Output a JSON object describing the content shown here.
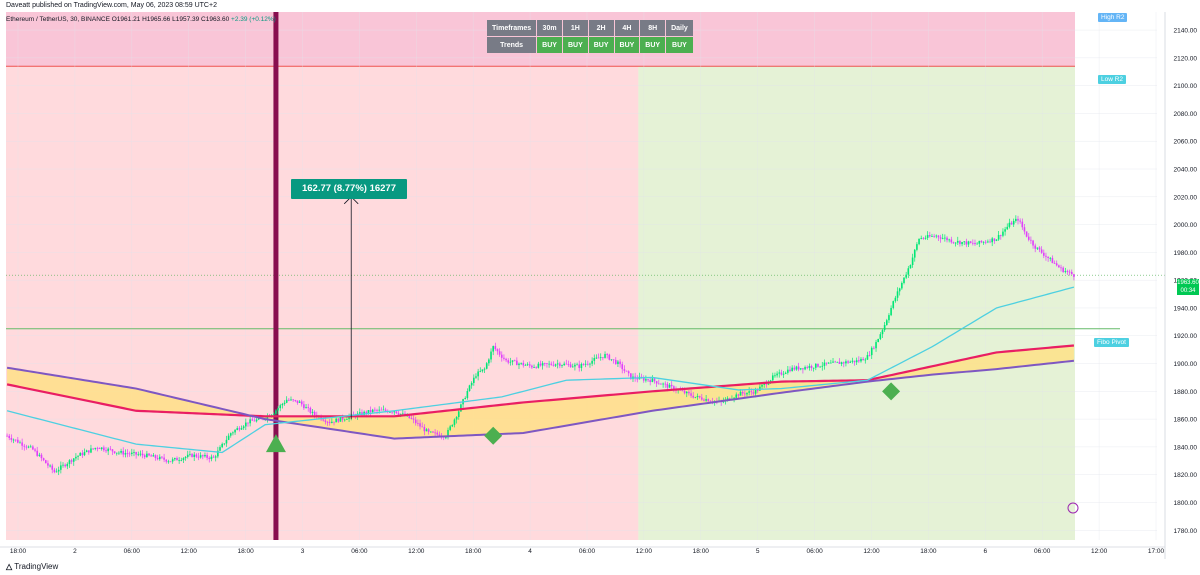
{
  "header": {
    "publisher_line": "Daveatt published on TradingView.com, May 06, 2023 08:59 UTC+2"
  },
  "legend": {
    "symbol": "Ethereum / TetherUS, 30, BINANCE",
    "ohlc": "O1961.21 H1965.66 L1957.39 C1963.60",
    "change": "+2.39 (+0.12%)"
  },
  "trend_table": {
    "header_label": "Timeframes",
    "row_label": "Trends",
    "timeframes": [
      "30m",
      "1H",
      "2H",
      "4H",
      "8H",
      "Daily"
    ],
    "trends": [
      "BUY",
      "BUY",
      "BUY",
      "BUY",
      "BUY",
      "BUY"
    ]
  },
  "measure": {
    "label": "162.77 (8.77%) 16277"
  },
  "price_labels": {
    "high_r2": "High R2",
    "low_r2": "Low R2",
    "fibo_pivot": "Fibo Pivot",
    "last_price": "1963.60",
    "countdown": "00:34"
  },
  "footer": {
    "brand": "TradingView"
  },
  "colors": {
    "bull": "#00e676",
    "bear": "#e040fb",
    "bear_zone": "#ffcdd2",
    "bull_zone": "#dcedc8",
    "r2_band": "#f8bbd0",
    "ma_red": "#e91e63",
    "ma_purple": "#7e57c2",
    "ma_cyan": "#4dd0e1",
    "fill_yellow": "#ffe082",
    "pivot_line": "#66bb6a",
    "measure": "#089981",
    "signal": "#4caf50"
  },
  "chart_data": {
    "type": "candlestick",
    "y_ticks": [
      1780,
      1800,
      1820,
      1840,
      1860,
      1880,
      1900,
      1920,
      1940,
      1960,
      1980,
      2000,
      2020,
      2040,
      2060,
      2080,
      2100,
      2120,
      2140
    ],
    "ylim": [
      1773,
      2153
    ],
    "x_ticks": [
      "18:00",
      "2",
      "06:00",
      "12:00",
      "18:00",
      "3",
      "06:00",
      "12:00",
      "18:00",
      "4",
      "06:00",
      "12:00",
      "18:00",
      "5",
      "06:00",
      "12:00",
      "18:00",
      "6",
      "06:00",
      "12:00",
      "17:00"
    ],
    "levels": {
      "high_r2": 2143,
      "low_r2": 2114,
      "fibo_pivot": 1925,
      "last_price": 1963.6
    },
    "anchors": [
      [
        0,
        1848
      ],
      [
        12,
        1838
      ],
      [
        22,
        1822
      ],
      [
        32,
        1833
      ],
      [
        42,
        1840
      ],
      [
        52,
        1836
      ],
      [
        64,
        1834
      ],
      [
        76,
        1830
      ],
      [
        86,
        1834
      ],
      [
        96,
        1832
      ],
      [
        104,
        1850
      ],
      [
        112,
        1858
      ],
      [
        118,
        1860
      ],
      [
        124,
        1865
      ],
      [
        130,
        1874
      ],
      [
        136,
        1872
      ],
      [
        142,
        1864
      ],
      [
        150,
        1858
      ],
      [
        160,
        1862
      ],
      [
        170,
        1866
      ],
      [
        180,
        1866
      ],
      [
        188,
        1860
      ],
      [
        196,
        1850
      ],
      [
        204,
        1848
      ],
      [
        210,
        1866
      ],
      [
        214,
        1880
      ],
      [
        218,
        1892
      ],
      [
        222,
        1896
      ],
      [
        226,
        1912
      ],
      [
        232,
        1902
      ],
      [
        244,
        1898
      ],
      [
        256,
        1900
      ],
      [
        266,
        1898
      ],
      [
        272,
        1902
      ],
      [
        278,
        1906
      ],
      [
        284,
        1900
      ],
      [
        290,
        1890
      ],
      [
        300,
        1888
      ],
      [
        310,
        1882
      ],
      [
        320,
        1876
      ],
      [
        332,
        1872
      ],
      [
        340,
        1878
      ],
      [
        348,
        1880
      ],
      [
        356,
        1890
      ],
      [
        364,
        1896
      ],
      [
        374,
        1898
      ],
      [
        384,
        1900
      ],
      [
        396,
        1902
      ],
      [
        400,
        1905
      ],
      [
        404,
        1915
      ],
      [
        408,
        1928
      ],
      [
        412,
        1944
      ],
      [
        416,
        1958
      ],
      [
        420,
        1972
      ],
      [
        424,
        1990
      ],
      [
        432,
        1992
      ],
      [
        440,
        1988
      ],
      [
        450,
        1986
      ],
      [
        460,
        1990
      ],
      [
        466,
        2000
      ],
      [
        470,
        2004
      ],
      [
        474,
        1992
      ],
      [
        478,
        1984
      ],
      [
        484,
        1976
      ],
      [
        490,
        1968
      ],
      [
        496,
        1963.6
      ]
    ],
    "candles_total": 497,
    "moving_averages": [
      {
        "name": "MA red",
        "points": [
          [
            0,
            1885
          ],
          [
            60,
            1866
          ],
          [
            120,
            1862
          ],
          [
            180,
            1862
          ],
          [
            240,
            1872
          ],
          [
            300,
            1880
          ],
          [
            360,
            1887
          ],
          [
            400,
            1888
          ],
          [
            430,
            1898
          ],
          [
            460,
            1908
          ],
          [
            496,
            1913
          ]
        ]
      },
      {
        "name": "MA purple",
        "points": [
          [
            0,
            1897
          ],
          [
            60,
            1882
          ],
          [
            120,
            1860
          ],
          [
            180,
            1846
          ],
          [
            240,
            1850
          ],
          [
            300,
            1866
          ],
          [
            360,
            1879
          ],
          [
            400,
            1887
          ],
          [
            430,
            1892
          ],
          [
            460,
            1896
          ],
          [
            496,
            1902
          ]
        ]
      },
      {
        "name": "MA cyan",
        "points": [
          [
            0,
            1866
          ],
          [
            60,
            1842
          ],
          [
            100,
            1836
          ],
          [
            120,
            1856
          ],
          [
            180,
            1866
          ],
          [
            230,
            1876
          ],
          [
            260,
            1888
          ],
          [
            300,
            1890
          ],
          [
            340,
            1881
          ],
          [
            360,
            1882
          ],
          [
            400,
            1888
          ],
          [
            430,
            1912
          ],
          [
            460,
            1940
          ],
          [
            496,
            1955
          ]
        ]
      }
    ],
    "zones": [
      {
        "type": "bear",
        "from_candle": 0,
        "to_candle": 294
      },
      {
        "type": "bull",
        "from_candle": 294,
        "to_candle": 500
      }
    ],
    "vertical_marker_candle": 125,
    "measure": {
      "x_candle": 160,
      "from": 1860,
      "to": 2020
    },
    "signals": [
      {
        "shape": "triangle-up",
        "candle": 125,
        "price": 1842
      },
      {
        "shape": "diamond",
        "candle": 226,
        "price": 1848
      },
      {
        "shape": "diamond",
        "candle": 411,
        "price": 1880
      }
    ]
  }
}
